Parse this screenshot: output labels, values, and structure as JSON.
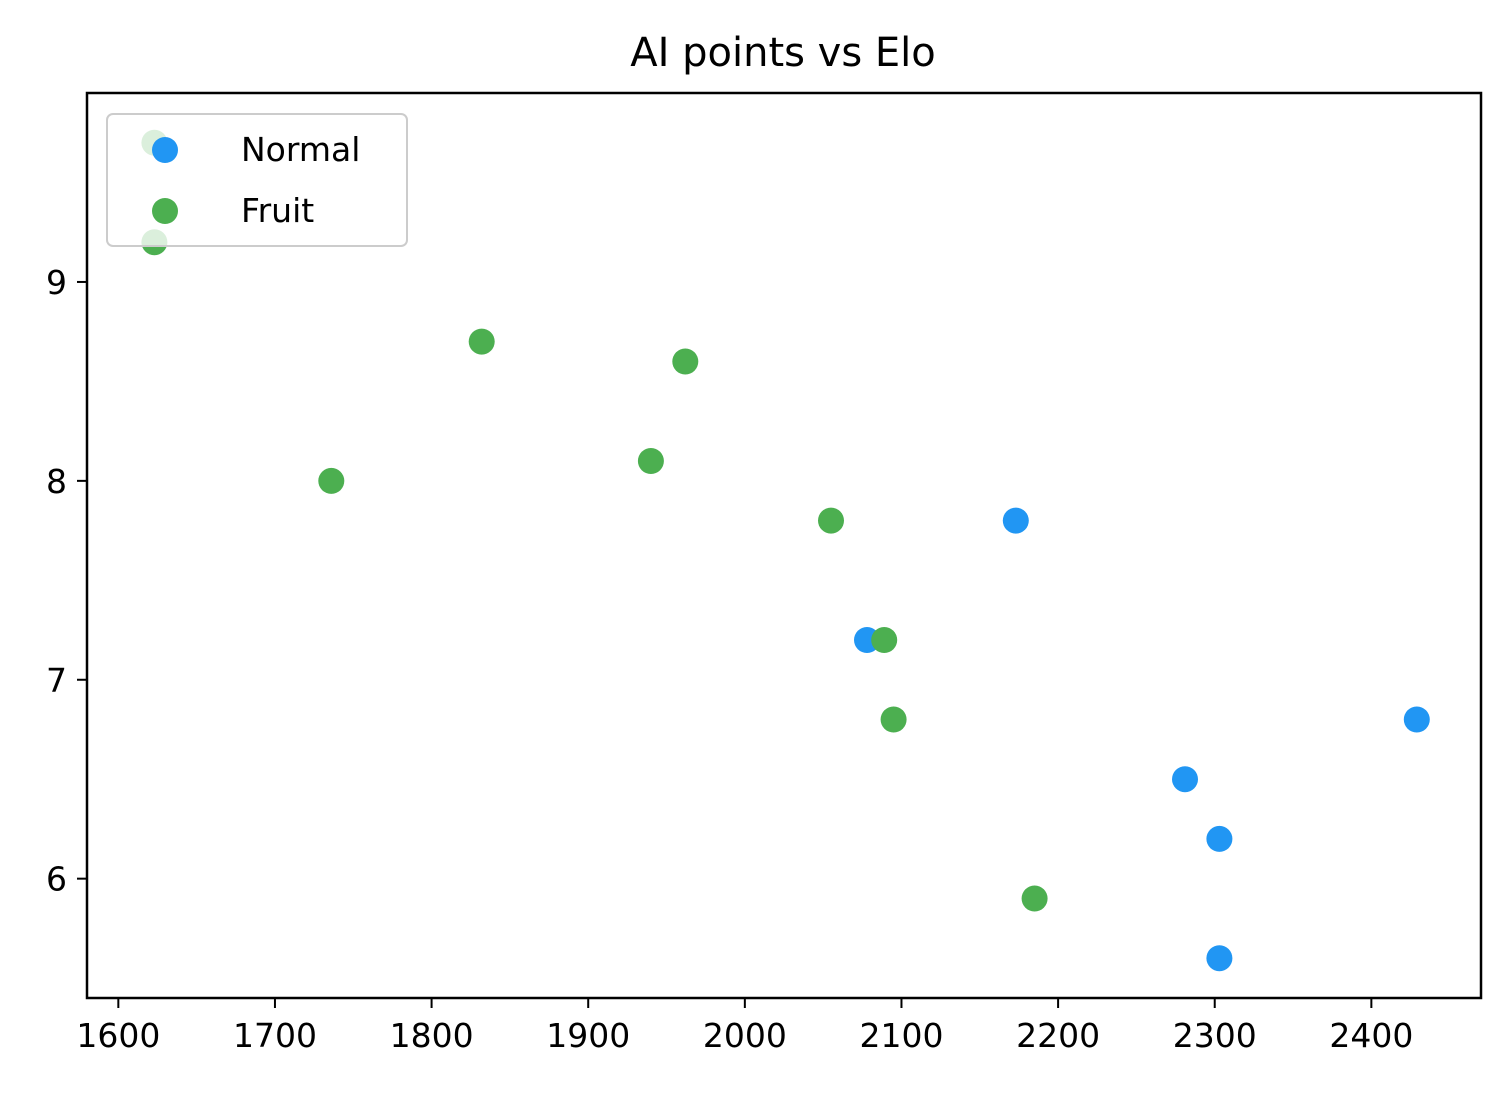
{
  "chart_data": {
    "type": "scatter",
    "title": "AI points vs Elo",
    "xlabel": "",
    "ylabel": "",
    "xlim": [
      1580,
      2470
    ],
    "ylim": [
      5.4,
      9.95
    ],
    "x_ticks": [
      1600,
      1700,
      1800,
      1900,
      2000,
      2100,
      2200,
      2300,
      2400
    ],
    "y_ticks": [
      6,
      7,
      8,
      9
    ],
    "grid": false,
    "legend": {
      "placement": "top-left",
      "entries": [
        "Normal",
        "Fruit"
      ]
    },
    "series": [
      {
        "name": "Normal",
        "color": "#2196f3",
        "points": [
          {
            "x": 2173,
            "y": 7.8
          },
          {
            "x": 2078,
            "y": 7.2
          },
          {
            "x": 2429,
            "y": 6.8
          },
          {
            "x": 2281,
            "y": 6.5
          },
          {
            "x": 2303,
            "y": 6.2
          },
          {
            "x": 2303,
            "y": 5.6
          }
        ]
      },
      {
        "name": "Fruit",
        "color": "#4caf50",
        "points": [
          {
            "x": 1623,
            "y": 9.7
          },
          {
            "x": 1623,
            "y": 9.2
          },
          {
            "x": 1832,
            "y": 8.7
          },
          {
            "x": 1962,
            "y": 8.6
          },
          {
            "x": 1940,
            "y": 8.1
          },
          {
            "x": 1736,
            "y": 8.0
          },
          {
            "x": 2055,
            "y": 7.8
          },
          {
            "x": 2089,
            "y": 7.2
          },
          {
            "x": 2095,
            "y": 6.8
          },
          {
            "x": 2185,
            "y": 5.9
          }
        ]
      }
    ]
  }
}
